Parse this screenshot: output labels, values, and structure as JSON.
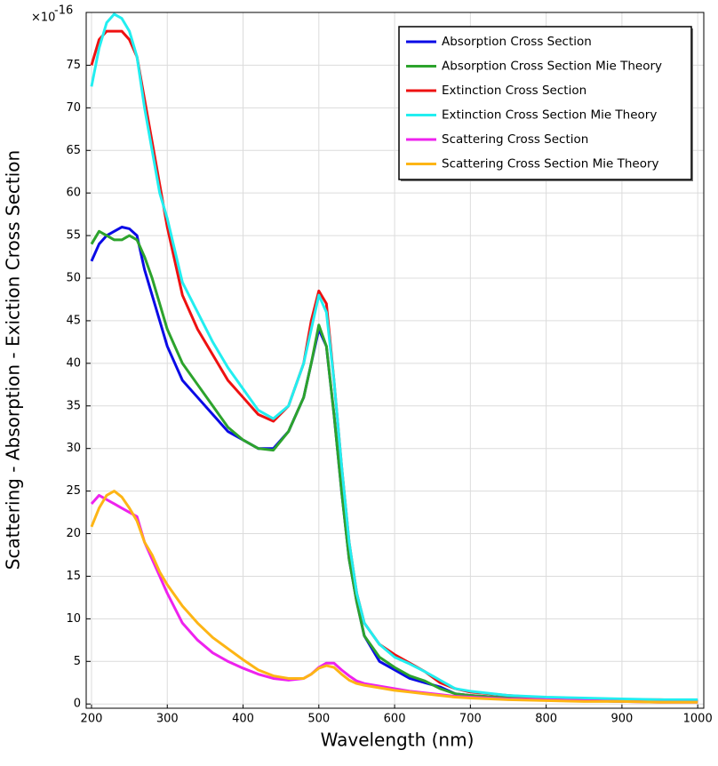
{
  "chart_data": {
    "type": "line",
    "y_axis_label": "Scattering - Absorption - Exiction  Cross Section",
    "x_axis_label": "Wavelength (nm)",
    "y_multiplier": {
      "base": "×10",
      "exponent": "-16"
    },
    "x": [
      200,
      210,
      220,
      230,
      240,
      250,
      260,
      270,
      280,
      290,
      300,
      320,
      340,
      360,
      380,
      400,
      420,
      440,
      460,
      480,
      490,
      500,
      510,
      520,
      530,
      540,
      550,
      560,
      580,
      600,
      620,
      640,
      660,
      680,
      700,
      750,
      800,
      850,
      900,
      950,
      1000
    ],
    "series": [
      {
        "name": "Absorption Cross Section",
        "color": "#0a0ae6",
        "values": [
          52,
          54,
          55,
          55.5,
          56,
          55.8,
          55,
          51,
          48,
          45,
          42,
          38,
          36,
          34,
          32,
          31,
          30,
          30,
          32,
          36,
          40,
          44,
          42,
          34,
          25,
          17,
          12,
          8,
          5,
          4,
          3,
          2.5,
          2,
          1.2,
          1,
          0.7,
          0.5,
          0.4,
          0.3,
          0.3,
          0.3
        ]
      },
      {
        "name": "Absorption Cross Section Mie Theory",
        "color": "#2ca32c",
        "values": [
          54,
          55.5,
          55,
          54.5,
          54.5,
          55,
          54.5,
          52.5,
          50,
          47,
          44,
          40,
          37.5,
          35,
          32.5,
          31,
          30,
          29.8,
          32,
          36,
          40,
          44.5,
          42,
          34,
          25,
          17,
          12,
          8,
          5.5,
          4.3,
          3.3,
          2.7,
          1.8,
          1.2,
          1,
          0.7,
          0.5,
          0.4,
          0.3,
          0.3,
          0.3
        ]
      },
      {
        "name": "Extinction Cross Section",
        "color": "#ee1111",
        "values": [
          75,
          78,
          79,
          79,
          79,
          78,
          76,
          71,
          66,
          61,
          56,
          48,
          44,
          41,
          38,
          36,
          34,
          33.2,
          35,
          40,
          45,
          48.5,
          47,
          38,
          28,
          19,
          13,
          9.5,
          7,
          5.8,
          4.8,
          3.8,
          2.5,
          1.8,
          1.4,
          1,
          0.7,
          0.6,
          0.5,
          0.5,
          0.4
        ]
      },
      {
        "name": "Extinction Cross Section Mie Theory",
        "color": "#22eef0",
        "values": [
          72.5,
          77,
          80,
          81,
          80.5,
          79,
          76,
          70,
          65,
          60,
          57,
          49.5,
          46,
          42.5,
          39.5,
          37,
          34.5,
          33.5,
          35,
          40,
          44,
          48,
          46,
          38,
          28,
          19,
          13,
          9.5,
          7,
          5.5,
          4.7,
          3.8,
          2.8,
          1.8,
          1.5,
          1,
          0.8,
          0.7,
          0.6,
          0.5,
          0.5
        ]
      },
      {
        "name": "Scattering Cross Section",
        "color": "#ee22ee",
        "values": [
          23.5,
          24.5,
          24,
          23.5,
          23,
          22.5,
          22,
          19,
          17,
          15,
          13,
          9.5,
          7.5,
          6,
          5,
          4.2,
          3.5,
          3,
          2.8,
          3,
          3.5,
          4.3,
          4.8,
          4.8,
          4,
          3.3,
          2.7,
          2.4,
          2.1,
          1.8,
          1.5,
          1.3,
          1.1,
          0.9,
          0.8,
          0.6,
          0.5,
          0.4,
          0.3,
          0.2,
          0.2
        ]
      },
      {
        "name": "Scattering Cross Section Mie Theory",
        "color": "#fdb515",
        "values": [
          20.8,
          23,
          24.5,
          25,
          24.3,
          23,
          21.5,
          19,
          17.5,
          15.5,
          14,
          11.5,
          9.5,
          7.8,
          6.5,
          5.2,
          4,
          3.3,
          3,
          3,
          3.5,
          4.2,
          4.5,
          4.3,
          3.5,
          2.8,
          2.4,
          2.2,
          1.9,
          1.6,
          1.4,
          1.2,
          1,
          0.8,
          0.7,
          0.5,
          0.4,
          0.3,
          0.3,
          0.2,
          0.2
        ]
      }
    ],
    "xlim": [
      193,
      1008
    ],
    "ylim": [
      -0.5,
      81.2
    ],
    "xticks": [
      200,
      300,
      400,
      500,
      600,
      700,
      800,
      900,
      1000
    ],
    "yticks": [
      0,
      5,
      10,
      15,
      20,
      25,
      30,
      35,
      40,
      45,
      50,
      55,
      60,
      65,
      70,
      75
    ],
    "grid": true,
    "legend": "upper right"
  }
}
